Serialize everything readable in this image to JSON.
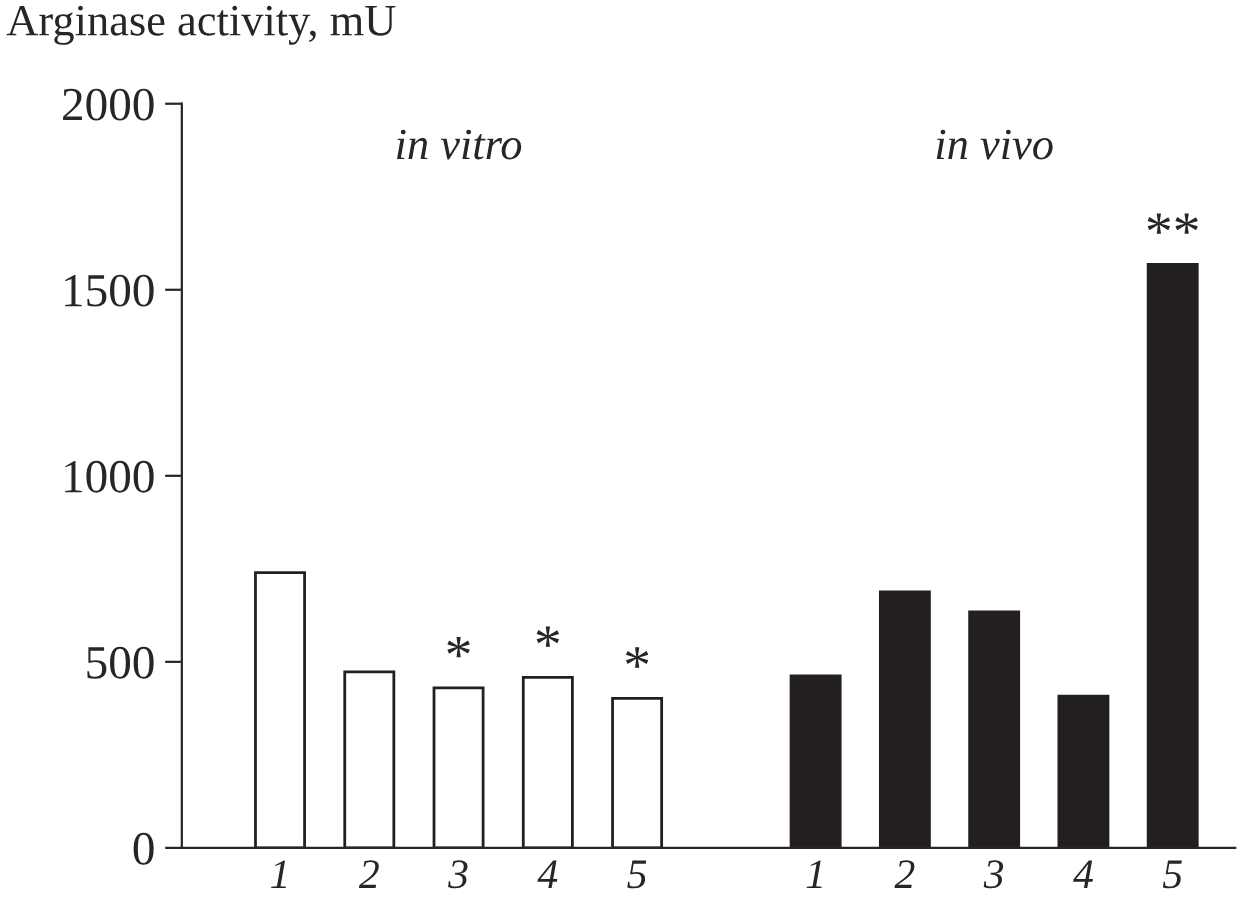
{
  "chart_data": {
    "type": "bar",
    "ylabel": "Arginase activity, mU",
    "categories": [
      "1",
      "2",
      "3",
      "4",
      "5",
      null,
      "1",
      "2",
      "3",
      "4",
      "5"
    ],
    "values": [
      740,
      473,
      430,
      458,
      402,
      null,
      462,
      688,
      634,
      408,
      1568
    ],
    "colors": [
      "#ffffff",
      "#ffffff",
      "#ffffff",
      "#ffffff",
      "#ffffff",
      "#ffffff",
      "#231f20",
      "#231f20",
      "#231f20",
      "#231f20",
      "#231f20"
    ],
    "value_labels": [
      null,
      null,
      "*",
      "*",
      "*",
      null,
      null,
      null,
      null,
      null,
      "**"
    ],
    "annotations": [
      "in vitro",
      "in vivo"
    ],
    "ylim": [
      0,
      2000
    ],
    "yticks": [
      0,
      500,
      1000,
      1500,
      2000
    ],
    "grid": false,
    "legend": false
  }
}
